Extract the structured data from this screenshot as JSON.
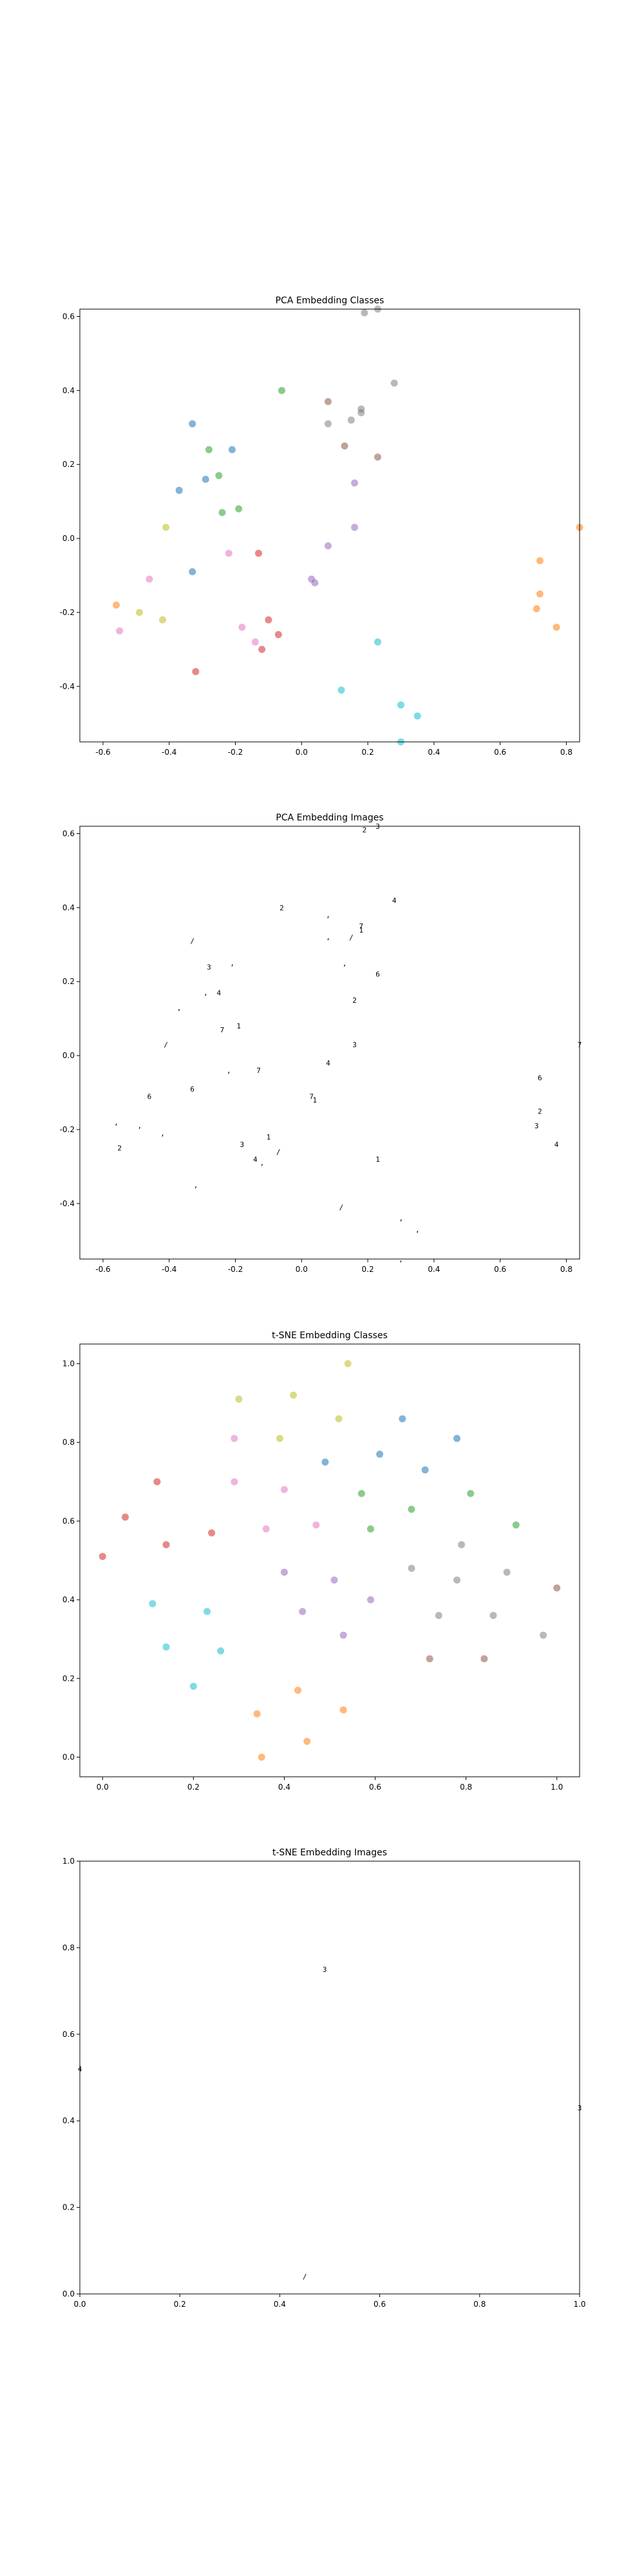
{
  "colors": {
    "blue": "#1f77b4",
    "orange": "#ff7f0e",
    "green": "#2ca02c",
    "red": "#d62728",
    "purple": "#9467bd",
    "brown": "#8c564b",
    "pink": "#e377c2",
    "gray": "#7f7f7f",
    "olive": "#bcbd22",
    "cyan": "#17becf"
  },
  "chart_data": [
    {
      "type": "scatter",
      "title": "PCA Embedding Classes",
      "xlim": [
        -0.67,
        0.84
      ],
      "ylim": [
        -0.55,
        0.62
      ],
      "xticks": [
        "-0.6",
        "-0.4",
        "-0.2",
        "0.0",
        "0.2",
        "0.4",
        "0.6",
        "0.8"
      ],
      "yticks": [
        "-0.4",
        "-0.2",
        "0.0",
        "0.2",
        "0.4",
        "0.6"
      ],
      "grid": false,
      "points": [
        {
          "x": 0.19,
          "y": 0.61,
          "c": "gray"
        },
        {
          "x": 0.23,
          "y": 0.62,
          "c": "gray"
        },
        {
          "x": 0.28,
          "y": 0.42,
          "c": "gray"
        },
        {
          "x": 0.18,
          "y": 0.35,
          "c": "gray"
        },
        {
          "x": 0.18,
          "y": 0.34,
          "c": "gray"
        },
        {
          "x": 0.15,
          "y": 0.32,
          "c": "gray"
        },
        {
          "x": 0.08,
          "y": 0.31,
          "c": "gray"
        },
        {
          "x": 0.08,
          "y": 0.37,
          "c": "brown"
        },
        {
          "x": 0.13,
          "y": 0.25,
          "c": "brown"
        },
        {
          "x": 0.23,
          "y": 0.22,
          "c": "brown"
        },
        {
          "x": -0.06,
          "y": 0.4,
          "c": "green"
        },
        {
          "x": -0.28,
          "y": 0.24,
          "c": "green"
        },
        {
          "x": -0.25,
          "y": 0.17,
          "c": "green"
        },
        {
          "x": -0.24,
          "y": 0.07,
          "c": "green"
        },
        {
          "x": -0.19,
          "y": 0.08,
          "c": "green"
        },
        {
          "x": -0.33,
          "y": 0.31,
          "c": "blue"
        },
        {
          "x": -0.21,
          "y": 0.24,
          "c": "blue"
        },
        {
          "x": -0.29,
          "y": 0.16,
          "c": "blue"
        },
        {
          "x": -0.37,
          "y": 0.13,
          "c": "blue"
        },
        {
          "x": -0.33,
          "y": -0.09,
          "c": "blue"
        },
        {
          "x": 0.16,
          "y": 0.15,
          "c": "purple"
        },
        {
          "x": 0.16,
          "y": 0.03,
          "c": "purple"
        },
        {
          "x": 0.08,
          "y": -0.02,
          "c": "purple"
        },
        {
          "x": 0.03,
          "y": -0.11,
          "c": "purple"
        },
        {
          "x": 0.04,
          "y": -0.12,
          "c": "purple"
        },
        {
          "x": -0.41,
          "y": 0.03,
          "c": "olive"
        },
        {
          "x": -0.49,
          "y": -0.2,
          "c": "olive"
        },
        {
          "x": -0.42,
          "y": -0.22,
          "c": "olive"
        },
        {
          "x": -0.22,
          "y": -0.04,
          "c": "pink"
        },
        {
          "x": -0.46,
          "y": -0.11,
          "c": "pink"
        },
        {
          "x": -0.55,
          "y": -0.25,
          "c": "pink"
        },
        {
          "x": -0.18,
          "y": -0.24,
          "c": "pink"
        },
        {
          "x": -0.14,
          "y": -0.28,
          "c": "pink"
        },
        {
          "x": -0.13,
          "y": -0.04,
          "c": "red"
        },
        {
          "x": -0.1,
          "y": -0.22,
          "c": "red"
        },
        {
          "x": -0.07,
          "y": -0.26,
          "c": "red"
        },
        {
          "x": -0.12,
          "y": -0.3,
          "c": "red"
        },
        {
          "x": -0.32,
          "y": -0.36,
          "c": "red"
        },
        {
          "x": -0.56,
          "y": -0.18,
          "c": "orange"
        },
        {
          "x": 0.72,
          "y": -0.06,
          "c": "orange"
        },
        {
          "x": 0.72,
          "y": -0.15,
          "c": "orange"
        },
        {
          "x": 0.71,
          "y": -0.19,
          "c": "orange"
        },
        {
          "x": 0.77,
          "y": -0.24,
          "c": "orange"
        },
        {
          "x": 0.84,
          "y": 0.03,
          "c": "orange"
        },
        {
          "x": 0.23,
          "y": -0.28,
          "c": "cyan"
        },
        {
          "x": 0.12,
          "y": -0.41,
          "c": "cyan"
        },
        {
          "x": 0.3,
          "y": -0.45,
          "c": "cyan"
        },
        {
          "x": 0.35,
          "y": -0.48,
          "c": "cyan"
        },
        {
          "x": 0.3,
          "y": -0.55,
          "c": "cyan"
        }
      ]
    },
    {
      "type": "scatter",
      "title": "PCA Embedding Images",
      "xlim": [
        -0.67,
        0.84
      ],
      "ylim": [
        -0.55,
        0.62
      ],
      "xticks": [
        "-0.6",
        "-0.4",
        "-0.2",
        "0.0",
        "0.2",
        "0.4",
        "0.6",
        "0.8"
      ],
      "yticks": [
        "-0.4",
        "-0.2",
        "0.0",
        "0.2",
        "0.4",
        "0.6"
      ],
      "grid": false,
      "marker": "image"
    },
    {
      "type": "scatter",
      "title": "t-SNE Embedding Classes",
      "xlim": [
        -0.05,
        1.05
      ],
      "ylim": [
        -0.05,
        1.05
      ],
      "xticks": [
        "0.0",
        "0.2",
        "0.4",
        "0.6",
        "0.8",
        "1.0"
      ],
      "yticks": [
        "0.0",
        "0.2",
        "0.4",
        "0.6",
        "0.8",
        "1.0"
      ],
      "grid": false,
      "points": [
        {
          "x": 0.54,
          "y": 1.0,
          "c": "olive"
        },
        {
          "x": 0.42,
          "y": 0.92,
          "c": "olive"
        },
        {
          "x": 0.3,
          "y": 0.91,
          "c": "olive"
        },
        {
          "x": 0.52,
          "y": 0.86,
          "c": "olive"
        },
        {
          "x": 0.39,
          "y": 0.81,
          "c": "olive"
        },
        {
          "x": 0.66,
          "y": 0.86,
          "c": "blue"
        },
        {
          "x": 0.78,
          "y": 0.81,
          "c": "blue"
        },
        {
          "x": 0.61,
          "y": 0.77,
          "c": "blue"
        },
        {
          "x": 0.49,
          "y": 0.75,
          "c": "blue"
        },
        {
          "x": 0.71,
          "y": 0.73,
          "c": "blue"
        },
        {
          "x": 0.29,
          "y": 0.81,
          "c": "pink"
        },
        {
          "x": 0.29,
          "y": 0.7,
          "c": "pink"
        },
        {
          "x": 0.4,
          "y": 0.68,
          "c": "pink"
        },
        {
          "x": 0.36,
          "y": 0.58,
          "c": "pink"
        },
        {
          "x": 0.47,
          "y": 0.59,
          "c": "pink"
        },
        {
          "x": 0.12,
          "y": 0.7,
          "c": "red"
        },
        {
          "x": 0.05,
          "y": 0.61,
          "c": "red"
        },
        {
          "x": 0.0,
          "y": 0.51,
          "c": "red"
        },
        {
          "x": 0.14,
          "y": 0.54,
          "c": "red"
        },
        {
          "x": 0.24,
          "y": 0.57,
          "c": "red"
        },
        {
          "x": 0.57,
          "y": 0.67,
          "c": "green"
        },
        {
          "x": 0.68,
          "y": 0.63,
          "c": "green"
        },
        {
          "x": 0.81,
          "y": 0.67,
          "c": "green"
        },
        {
          "x": 0.59,
          "y": 0.58,
          "c": "green"
        },
        {
          "x": 0.91,
          "y": 0.59,
          "c": "green"
        },
        {
          "x": 0.79,
          "y": 0.54,
          "c": "gray"
        },
        {
          "x": 0.68,
          "y": 0.48,
          "c": "gray"
        },
        {
          "x": 0.78,
          "y": 0.45,
          "c": "gray"
        },
        {
          "x": 0.89,
          "y": 0.47,
          "c": "gray"
        },
        {
          "x": 0.86,
          "y": 0.36,
          "c": "gray"
        },
        {
          "x": 0.74,
          "y": 0.36,
          "c": "gray"
        },
        {
          "x": 0.97,
          "y": 0.31,
          "c": "gray"
        },
        {
          "x": 0.4,
          "y": 0.47,
          "c": "purple"
        },
        {
          "x": 0.51,
          "y": 0.45,
          "c": "purple"
        },
        {
          "x": 0.59,
          "y": 0.4,
          "c": "purple"
        },
        {
          "x": 0.44,
          "y": 0.37,
          "c": "purple"
        },
        {
          "x": 0.53,
          "y": 0.31,
          "c": "purple"
        },
        {
          "x": 1.0,
          "y": 0.43,
          "c": "brown"
        },
        {
          "x": 0.72,
          "y": 0.25,
          "c": "brown"
        },
        {
          "x": 0.84,
          "y": 0.25,
          "c": "brown"
        },
        {
          "x": 0.11,
          "y": 0.39,
          "c": "cyan"
        },
        {
          "x": 0.23,
          "y": 0.37,
          "c": "cyan"
        },
        {
          "x": 0.14,
          "y": 0.28,
          "c": "cyan"
        },
        {
          "x": 0.26,
          "y": 0.27,
          "c": "cyan"
        },
        {
          "x": 0.2,
          "y": 0.18,
          "c": "cyan"
        },
        {
          "x": 0.43,
          "y": 0.17,
          "c": "orange"
        },
        {
          "x": 0.53,
          "y": 0.12,
          "c": "orange"
        },
        {
          "x": 0.34,
          "y": 0.11,
          "c": "orange"
        },
        {
          "x": 0.45,
          "y": 0.04,
          "c": "orange"
        },
        {
          "x": 0.35,
          "y": 0.0,
          "c": "orange"
        }
      ]
    },
    {
      "type": "scatter",
      "title": "t-SNE Embedding Images",
      "xlim": [
        0.0,
        1.0
      ],
      "ylim": [
        0.0,
        1.0
      ],
      "xticks": [
        "0.0",
        "0.2",
        "0.4",
        "0.6",
        "0.8",
        "1.0"
      ],
      "yticks": [
        "0.0",
        "0.2",
        "0.4",
        "0.6",
        "0.8",
        "1.0"
      ],
      "grid": false,
      "marker": "image"
    }
  ]
}
